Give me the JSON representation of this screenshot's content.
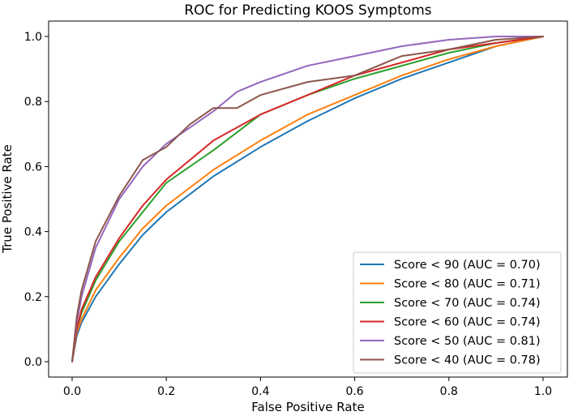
{
  "chart_data": {
    "type": "line",
    "title": "ROC for Predicting KOOS Symptoms",
    "xlabel": "False Positive Rate",
    "ylabel": "True Positive Rate",
    "xlim": [
      0.0,
      1.0
    ],
    "ylim": [
      0.0,
      1.0
    ],
    "x_ticks": [
      "0.0",
      "0.2",
      "0.4",
      "0.6",
      "0.8",
      "1.0"
    ],
    "y_ticks": [
      "0.0",
      "0.2",
      "0.4",
      "0.6",
      "0.8",
      "1.0"
    ],
    "grid": false,
    "legend_position": "lower-right",
    "series": [
      {
        "name": "Score < 90 (AUC = 0.70)",
        "color": "#1f77b4",
        "x": [
          0,
          0.01,
          0.02,
          0.05,
          0.1,
          0.15,
          0.2,
          0.3,
          0.4,
          0.5,
          0.6,
          0.7,
          0.8,
          0.9,
          1.0
        ],
        "y": [
          0,
          0.08,
          0.12,
          0.2,
          0.3,
          0.39,
          0.46,
          0.57,
          0.66,
          0.74,
          0.81,
          0.87,
          0.92,
          0.97,
          1.0
        ]
      },
      {
        "name": "Score < 80 (AUC = 0.71)",
        "color": "#ff7f0e",
        "x": [
          0,
          0.01,
          0.02,
          0.05,
          0.1,
          0.15,
          0.2,
          0.3,
          0.4,
          0.5,
          0.6,
          0.7,
          0.8,
          0.9,
          1.0
        ],
        "y": [
          0,
          0.09,
          0.13,
          0.22,
          0.32,
          0.41,
          0.48,
          0.59,
          0.68,
          0.76,
          0.82,
          0.88,
          0.93,
          0.97,
          1.0
        ]
      },
      {
        "name": "Score < 70 (AUC = 0.74)",
        "color": "#2ca02c",
        "x": [
          0,
          0.01,
          0.02,
          0.05,
          0.1,
          0.15,
          0.2,
          0.3,
          0.4,
          0.5,
          0.6,
          0.7,
          0.8,
          0.9,
          1.0
        ],
        "y": [
          0,
          0.1,
          0.15,
          0.25,
          0.37,
          0.46,
          0.55,
          0.65,
          0.76,
          0.82,
          0.87,
          0.91,
          0.95,
          0.98,
          1.0
        ]
      },
      {
        "name": "Score < 60 (AUC = 0.74)",
        "color": "#d62728",
        "x": [
          0,
          0.01,
          0.02,
          0.05,
          0.1,
          0.15,
          0.2,
          0.3,
          0.4,
          0.5,
          0.6,
          0.7,
          0.8,
          0.9,
          1.0
        ],
        "y": [
          0,
          0.1,
          0.16,
          0.26,
          0.38,
          0.48,
          0.56,
          0.68,
          0.76,
          0.82,
          0.88,
          0.92,
          0.96,
          0.98,
          1.0
        ]
      },
      {
        "name": "Score < 50 (AUC = 0.81)",
        "color": "#9467bd",
        "x": [
          0,
          0.01,
          0.02,
          0.05,
          0.1,
          0.15,
          0.2,
          0.25,
          0.3,
          0.35,
          0.4,
          0.5,
          0.6,
          0.7,
          0.8,
          0.9,
          1.0
        ],
        "y": [
          0,
          0.12,
          0.2,
          0.35,
          0.5,
          0.6,
          0.67,
          0.72,
          0.77,
          0.83,
          0.86,
          0.91,
          0.94,
          0.97,
          0.99,
          1.0,
          1.0
        ]
      },
      {
        "name": "Score < 40 (AUC = 0.78)",
        "color": "#8c564b",
        "x": [
          0,
          0.01,
          0.02,
          0.05,
          0.1,
          0.15,
          0.2,
          0.25,
          0.3,
          0.35,
          0.4,
          0.5,
          0.6,
          0.7,
          0.8,
          0.9,
          1.0
        ],
        "y": [
          0,
          0.14,
          0.22,
          0.37,
          0.51,
          0.62,
          0.66,
          0.73,
          0.78,
          0.78,
          0.82,
          0.86,
          0.88,
          0.94,
          0.96,
          0.99,
          1.0
        ]
      }
    ]
  }
}
